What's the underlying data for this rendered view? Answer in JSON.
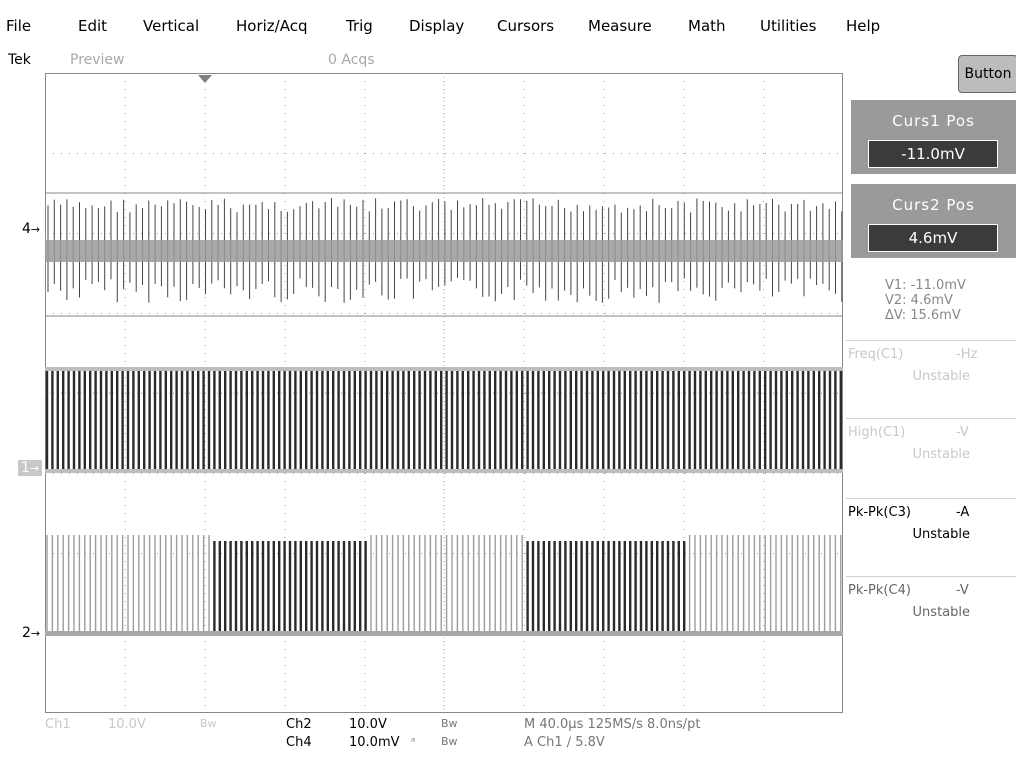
{
  "menu": {
    "items": [
      "File",
      "Edit",
      "Vertical",
      "Horiz/Acq",
      "Trig",
      "Display",
      "Cursors",
      "Measure",
      "Math",
      "Utilities",
      "Help"
    ]
  },
  "status": {
    "brand": "Tek",
    "mode": "Preview",
    "acqs": "0 Acqs"
  },
  "channel_markers": {
    "ch4": "4",
    "ch1": "1",
    "ch2": "2"
  },
  "right_panel": {
    "button_label": "Button",
    "curs1": {
      "label": "Curs1 Pos",
      "value": "-11.0mV"
    },
    "curs2": {
      "label": "Curs2 Pos",
      "value": "4.6mV"
    },
    "readout": {
      "v1": "V1: -11.0mV",
      "v2": "V2:  4.6mV",
      "dv": "ΔV:  15.6mV"
    },
    "measurements": [
      {
        "label": "Freq(C1)",
        "unit": "-Hz",
        "status": "Unstable"
      },
      {
        "label": "High(C1)",
        "unit": "-V",
        "status": "Unstable"
      },
      {
        "label": "Pk-Pk(C3)",
        "unit": "-A",
        "status": "Unstable"
      },
      {
        "label": "Pk-Pk(C4)",
        "unit": "-V",
        "status": "Unstable"
      }
    ]
  },
  "bottom_bar": {
    "ch1": "Ch1",
    "ch1_scale": "10.0V",
    "ch1_bw": "Bw",
    "ch2": "Ch2",
    "ch2_scale": "10.0V",
    "ch2_bw": "Bw",
    "ch4": "Ch4",
    "ch4_scale": "10.0mV",
    "ch4_bw": "Bw",
    "horiz": "M 40.0µs 125MS/s  8.0ns/pt",
    "trigger": "A  Ch1  ∕  5.8V"
  }
}
